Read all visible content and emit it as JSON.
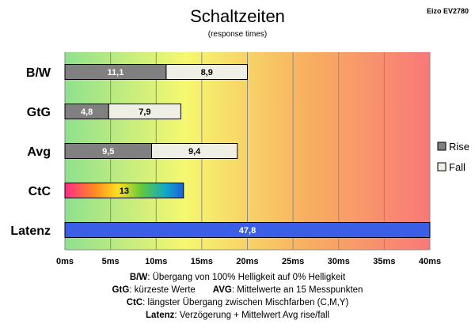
{
  "chart_data": {
    "type": "bar",
    "orientation": "horizontal",
    "stacked": true,
    "title": "Schaltzeiten",
    "subtitle": "(response times)",
    "brand": "Eizo EV2780",
    "categories": [
      "B/W",
      "GtG",
      "Avg",
      "CtC",
      "Latenz"
    ],
    "series": [
      {
        "name": "Rise",
        "color": "#808080",
        "values": [
          11.1,
          4.8,
          9.5,
          null,
          null
        ]
      },
      {
        "name": "Fall",
        "color": "#efefe6",
        "values": [
          8.9,
          7.9,
          9.4,
          null,
          null
        ]
      }
    ],
    "ctc_value": 13,
    "latenz_value": 47.8,
    "value_labels": {
      "rise": [
        "11,1",
        "4,8",
        "9,5"
      ],
      "fall": [
        "8,9",
        "7,9",
        "9,4"
      ],
      "ctc": "13",
      "latenz": "47,8"
    },
    "xlim": [
      0,
      40
    ],
    "xticks": [
      {
        "value": 0,
        "label": "0ms"
      },
      {
        "value": 5,
        "label": "5ms"
      },
      {
        "value": 10,
        "label": "10ms"
      },
      {
        "value": 15,
        "label": "15ms"
      },
      {
        "value": 20,
        "label": "20ms"
      },
      {
        "value": 25,
        "label": "25ms"
      },
      {
        "value": 30,
        "label": "30ms"
      },
      {
        "value": 35,
        "label": "35ms"
      },
      {
        "value": 40,
        "label": "40ms"
      }
    ],
    "grid": true,
    "legend_position": "right",
    "legend": [
      {
        "label": "Rise",
        "color": "#808080"
      },
      {
        "label": "Fall",
        "color": "#efefe6"
      }
    ],
    "latenz_color": "#3a5fe6",
    "background_gradient": [
      "#8fe08f",
      "#f8f870",
      "#f8a860",
      "#f87878"
    ]
  },
  "notes": [
    {
      "bold": "B/W",
      "text": ":  Übergang von 100% Helligkeit auf 0% Helligkeit"
    },
    {
      "bold": "GtG",
      "text": ": kürzeste  Werte",
      "bold2": "AVG",
      "text2": ": Mittelwerte an 15 Messpunkten"
    },
    {
      "bold": "CtC",
      "text": ": längster Übergang  zwischen Mischfarben (C,M,Y)"
    },
    {
      "bold": "Latenz",
      "text": ": Verzögerung  + Mittelwert Avg rise/fall"
    }
  ]
}
